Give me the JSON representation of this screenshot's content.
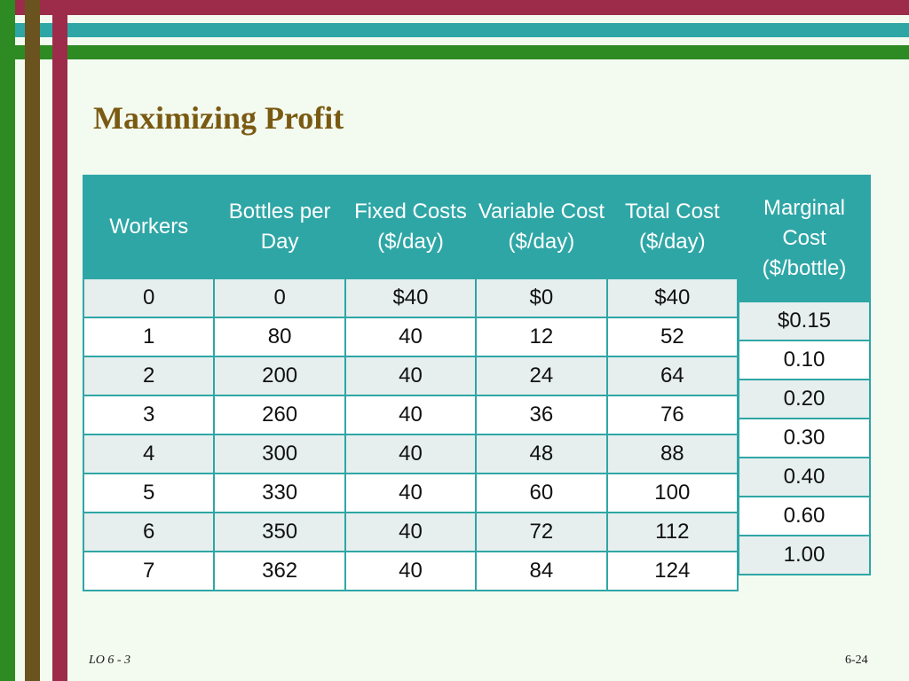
{
  "slide": {
    "title": "Maximizing Profit",
    "footer_left": "LO 6 - 3",
    "page_number": "6-24"
  },
  "table": {
    "headers": [
      "Workers",
      "Bottles per Day",
      "Fixed Costs ($/day)",
      "Variable Cost ($/day)",
      "Total Cost ($/day)"
    ],
    "rows": [
      [
        "0",
        "0",
        "$40",
        "$0",
        "$40"
      ],
      [
        "1",
        "80",
        "40",
        "12",
        "52"
      ],
      [
        "2",
        "200",
        "40",
        "24",
        "64"
      ],
      [
        "3",
        "260",
        "40",
        "36",
        "76"
      ],
      [
        "4",
        "300",
        "40",
        "48",
        "88"
      ],
      [
        "5",
        "330",
        "40",
        "60",
        "100"
      ],
      [
        "6",
        "350",
        "40",
        "72",
        "112"
      ],
      [
        "7",
        "362",
        "40",
        "84",
        "124"
      ]
    ]
  },
  "marginal": {
    "header": "Marginal Cost ($/bottle)",
    "values": [
      "$0.15",
      "0.10",
      "0.20",
      "0.30",
      "0.40",
      "0.60",
      "1.00"
    ]
  }
}
